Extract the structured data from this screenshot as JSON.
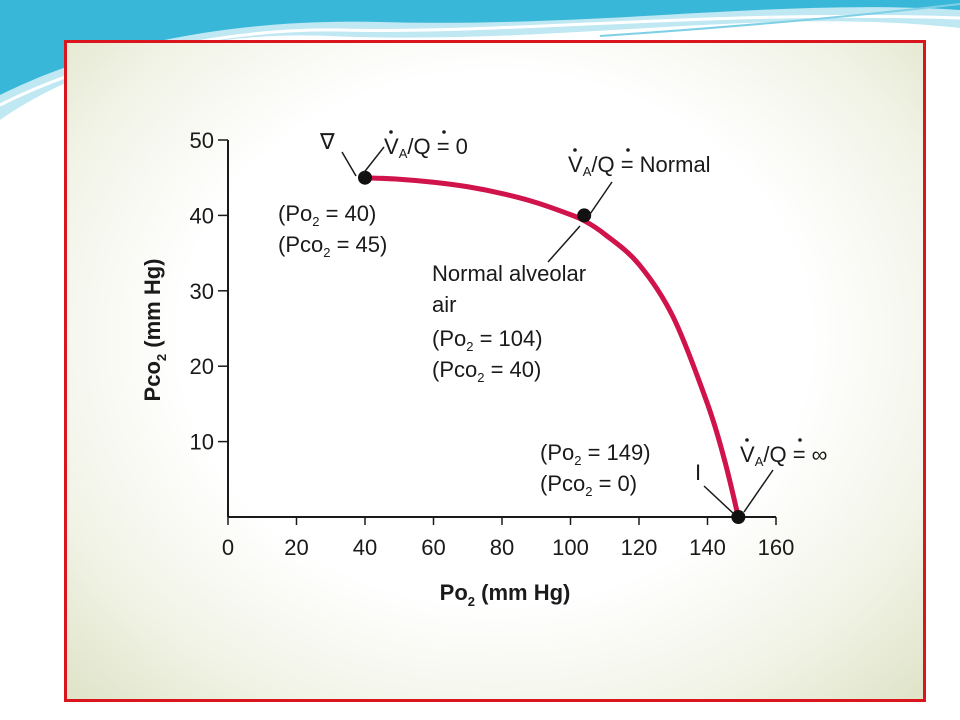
{
  "slide": {
    "accent": "#39b7d8"
  },
  "chart_data": {
    "type": "line",
    "xlabel_main": "Po",
    "xlabel_sub": "2",
    "xlabel_tail": " (mm Hg)",
    "ylabel_main": "Pco",
    "ylabel_sub": "2",
    "ylabel_tail": " (mm Hg)",
    "xlim": [
      0,
      160
    ],
    "ylim": [
      0,
      50
    ],
    "x_ticks": [
      "0",
      "20",
      "40",
      "60",
      "80",
      "100",
      "120",
      "140",
      "160"
    ],
    "y_ticks": [
      "10",
      "20",
      "30",
      "40",
      "50"
    ],
    "curve_color": "#d0134a",
    "series": [
      {
        "x": [
          40,
          50,
          60,
          70,
          80,
          90,
          100,
          104,
          110,
          120,
          130,
          140,
          145,
          149
        ],
        "y": [
          45,
          44.8,
          44.4,
          43.8,
          42.9,
          41.7,
          40.1,
          39.3,
          37.5,
          33.5,
          26.5,
          15,
          7.5,
          0
        ]
      }
    ],
    "points": [
      {
        "x": 40,
        "y": 45,
        "symbol": "∇",
        "ratio": {
          "pre": "V",
          "sub": "A",
          "mid": "/Q",
          "post": " = 0"
        },
        "po_label": {
          "pre": "(Po",
          "sub": "2",
          "post": " = 40)"
        },
        "pco_label": {
          "pre": "(Pco",
          "sub": "2",
          "post": " = 45)"
        }
      },
      {
        "x": 104,
        "y": 40,
        "ratio": {
          "pre": "V",
          "sub": "A",
          "mid": "/Q",
          "post": " = Normal"
        },
        "desc_line1": "Normal alveolar",
        "desc_line2": "air",
        "po_label": {
          "pre": "(Po",
          "sub": "2",
          "post": " = 104)"
        },
        "pco_label": {
          "pre": "(Pco",
          "sub": "2",
          "post": " = 40)"
        }
      },
      {
        "x": 149,
        "y": 0,
        "symbol": "I",
        "ratio": {
          "pre": "V",
          "sub": "A",
          "mid": "/Q",
          "post": " = ∞"
        },
        "po_label": {
          "pre": "(Po",
          "sub": "2",
          "post": " = 149)"
        },
        "pco_label": {
          "pre": "(Pco",
          "sub": "2",
          "post": " = 0)"
        }
      }
    ]
  }
}
